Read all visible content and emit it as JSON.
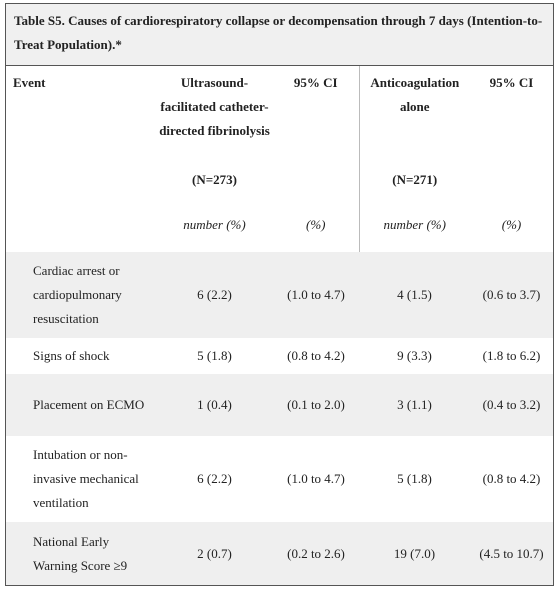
{
  "title": "Table S5. Causes of cardiorespiratory collapse or decompensation through 7 days (Intention-to-Treat Population).*",
  "header": {
    "event": "Event",
    "columns": [
      {
        "label": "Ultrasound-facilitated catheter-directed fibrinolysis",
        "n": "(N=273)",
        "unit": "number (%)"
      },
      {
        "label": "95% CI",
        "unit": "(%)"
      },
      {
        "label": "Anticoagulation alone",
        "n": "(N=271)",
        "unit": "number (%)"
      },
      {
        "label": "95% CI",
        "unit": "(%)"
      }
    ]
  },
  "rows": [
    {
      "event": "Cardiac arrest or cardiopulmonary resuscitation",
      "values": [
        "6 (2.2)",
        "(1.0 to 4.7)",
        "4 (1.5)",
        "(0.6 to 3.7)"
      ]
    },
    {
      "event": "Signs of shock",
      "values": [
        "5 (1.8)",
        "(0.8 to 4.2)",
        "9 (3.3)",
        "(1.8 to 6.2)"
      ]
    },
    {
      "event": "Placement on ECMO",
      "values": [
        "1 (0.4)",
        "(0.1 to 2.0)",
        "3 (1.1)",
        "(0.4 to 3.2)"
      ]
    },
    {
      "event": "Intubation or non-invasive mechanical ventilation",
      "values": [
        "6 (2.2)",
        "(1.0 to 4.7)",
        "5 (1.8)",
        "(0.8 to 4.2)"
      ]
    },
    {
      "event": "National Early Warning Score ≥9",
      "values": [
        "2 (0.7)",
        "(0.2 to 2.6)",
        "19 (7.0)",
        "(4.5 to 10.7)"
      ]
    }
  ]
}
